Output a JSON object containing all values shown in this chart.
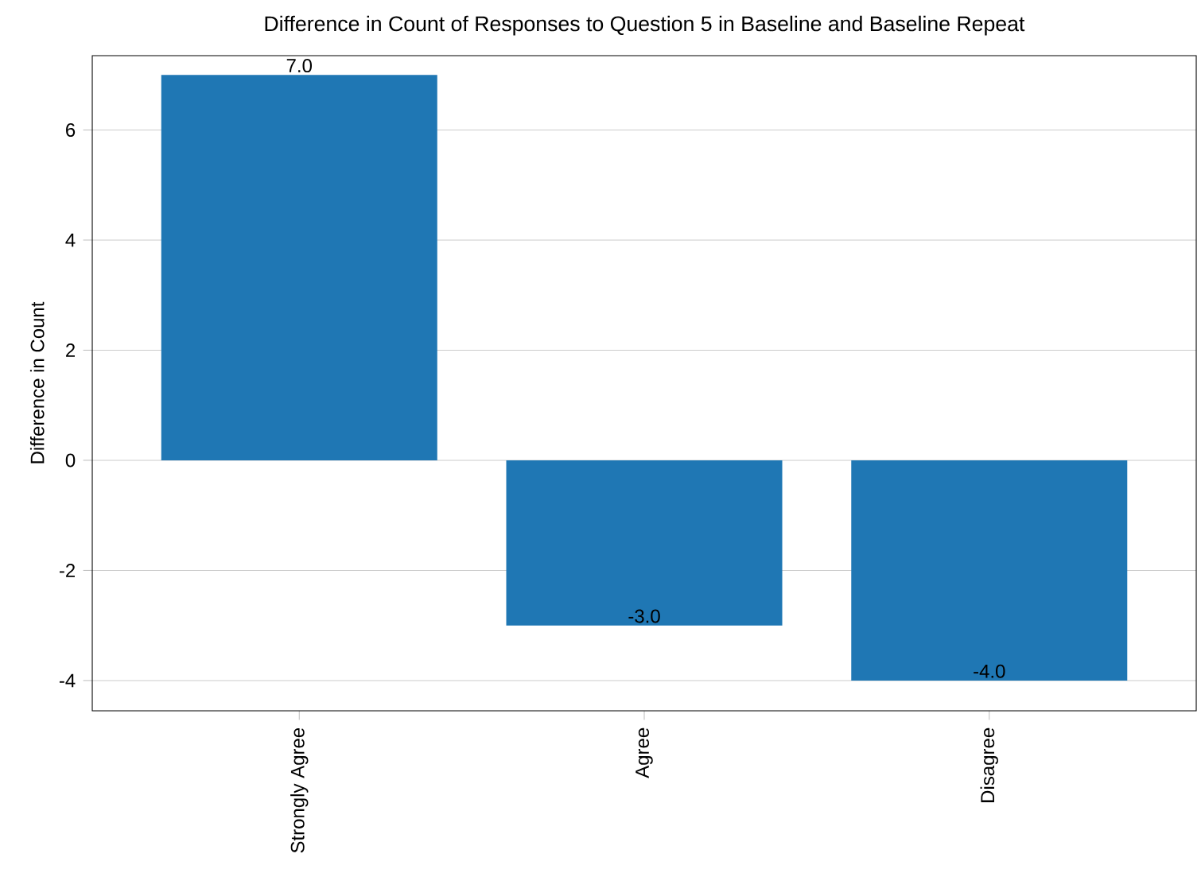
{
  "chart_data": {
    "type": "bar",
    "title": "Difference in Count of Responses to Question 5 in Baseline and Baseline Repeat",
    "ylabel": "Difference in Count",
    "categories": [
      "Strongly Agree",
      "Agree",
      "Disagree"
    ],
    "values": [
      7,
      -3,
      -4
    ],
    "value_labels": [
      "7.0",
      "-3.0",
      "-4.0"
    ],
    "color": "#1f77b4",
    "ylim": [
      -4.55,
      7.35
    ],
    "yticks": [
      -4,
      -2,
      0,
      2,
      4,
      6
    ],
    "grid": "y"
  }
}
